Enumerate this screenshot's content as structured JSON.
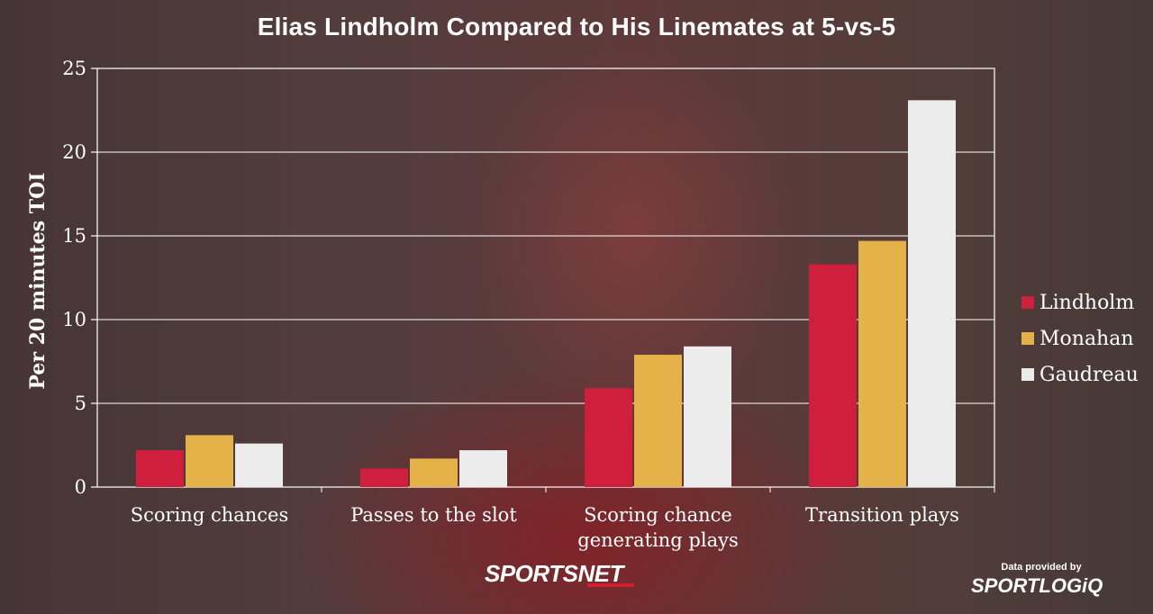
{
  "colors": {
    "lindholm": "#d01f3c",
    "monahan": "#e5b24a",
    "gaudreau": "#ececec",
    "grid": "#ffffff",
    "text": "#ffffff"
  },
  "branding": {
    "sportsnet": "SPORTSNET",
    "data_provided": "Data provided by",
    "sportlogiq": "SPORTLOGiQ"
  },
  "chart_data": {
    "type": "bar",
    "title": "Elias Lindholm Compared to His Linemates at 5-vs-5",
    "xlabel": "",
    "ylabel": "Per 20 minutes TOI",
    "ylim": [
      0,
      25
    ],
    "yticks": [
      "0",
      "5",
      "10",
      "15",
      "20",
      "25"
    ],
    "grid": true,
    "legend_position": "right",
    "categories": [
      [
        "Scoring chances"
      ],
      [
        "Passes to the slot"
      ],
      [
        "Scoring chance",
        "generating plays"
      ],
      [
        "Transition plays"
      ]
    ],
    "series": [
      {
        "name": "Lindholm",
        "color": "#d01f3c",
        "values": [
          2.2,
          1.1,
          5.9,
          13.3
        ]
      },
      {
        "name": "Monahan",
        "color": "#e5b24a",
        "values": [
          3.1,
          1.7,
          7.9,
          14.7
        ]
      },
      {
        "name": "Gaudreau",
        "color": "#ececec",
        "values": [
          2.6,
          2.2,
          8.4,
          23.1
        ]
      }
    ]
  }
}
